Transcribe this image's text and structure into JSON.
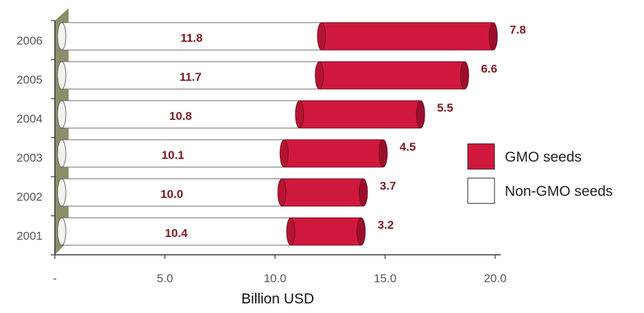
{
  "chart_data": {
    "type": "bar",
    "orientation": "horizontal",
    "stacked": true,
    "categories": [
      "2001",
      "2002",
      "2003",
      "2004",
      "2005",
      "2006"
    ],
    "series": [
      {
        "name": "Non-GMO seeds",
        "values": [
          10.4,
          10.0,
          10.1,
          10.8,
          11.7,
          11.8
        ],
        "color": "#ffffff"
      },
      {
        "name": "GMO seeds",
        "values": [
          3.2,
          3.7,
          4.5,
          5.5,
          6.6,
          7.8
        ],
        "color": "#d0183c"
      }
    ],
    "xlabel": "Billion USD",
    "xlim": [
      0,
      20
    ],
    "x_ticks": [
      "-",
      "5.0",
      "10.0",
      "15.0",
      "20.0"
    ],
    "legend_position": "right",
    "grid": false
  },
  "colors": {
    "gmo": "#d0183c",
    "gmo_dark": "#9c0f2c",
    "non_gmo": "#ffffff",
    "label": "#7a1b22",
    "wall": "#8e8d6a"
  }
}
